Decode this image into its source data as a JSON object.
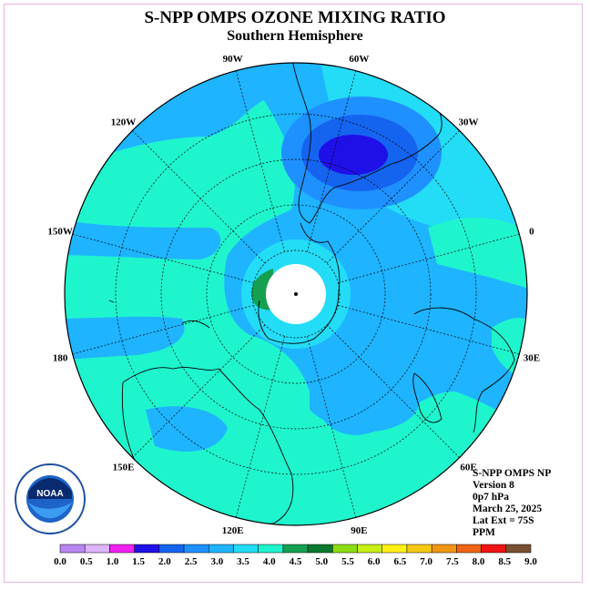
{
  "title": "S-NPP OMPS OZONE MIXING RATIO",
  "subtitle": "Southern Hemisphere",
  "longitude_labels": [
    "90W",
    "60W",
    "30W",
    "0",
    "30E",
    "60E",
    "90E",
    "120E",
    "150E",
    "180",
    "150W",
    "120W"
  ],
  "info": {
    "line1": "S-NPP OMPS NP",
    "line2": "Version 8",
    "line3": "0p7 hPa",
    "line4": "March 25, 2025",
    "line5": "Lat Ext = 75S",
    "line6": "PPM"
  },
  "logo_text": "NOAA",
  "logo_ring_text": "NATIONAL OCEANIC AND ATMOSPHERIC ADMINISTRATION · U.S. DEPARTMENT OF COMMERCE",
  "colorbar": {
    "ticks": [
      "0.0",
      "0.5",
      "1.0",
      "1.5",
      "2.0",
      "2.5",
      "3.0",
      "3.5",
      "4.0",
      "4.5",
      "5.0",
      "5.5",
      "6.0",
      "6.5",
      "7.0",
      "7.5",
      "8.0",
      "8.5",
      "9.0"
    ],
    "colors": [
      "#b784f0",
      "#dcb4f8",
      "#f020f0",
      "#2010e8",
      "#1464f0",
      "#1e90ff",
      "#1eb4ff",
      "#23dcf5",
      "#1ef5cd",
      "#14a050",
      "#0a7830",
      "#8cdc14",
      "#c8f014",
      "#fff014",
      "#f5c814",
      "#f09614",
      "#f06414",
      "#f01414",
      "#785032"
    ]
  },
  "colors": {
    "ocean_base": "#1eb4ff",
    "band_35_40": "#1ef5cd",
    "band_30_35": "#23dcf5",
    "band_25_30": "#1e90ff",
    "band_20_25": "#1464f0",
    "band_15_20": "#2010e8",
    "green": "#14a050",
    "frame": "#e6b8e6"
  }
}
